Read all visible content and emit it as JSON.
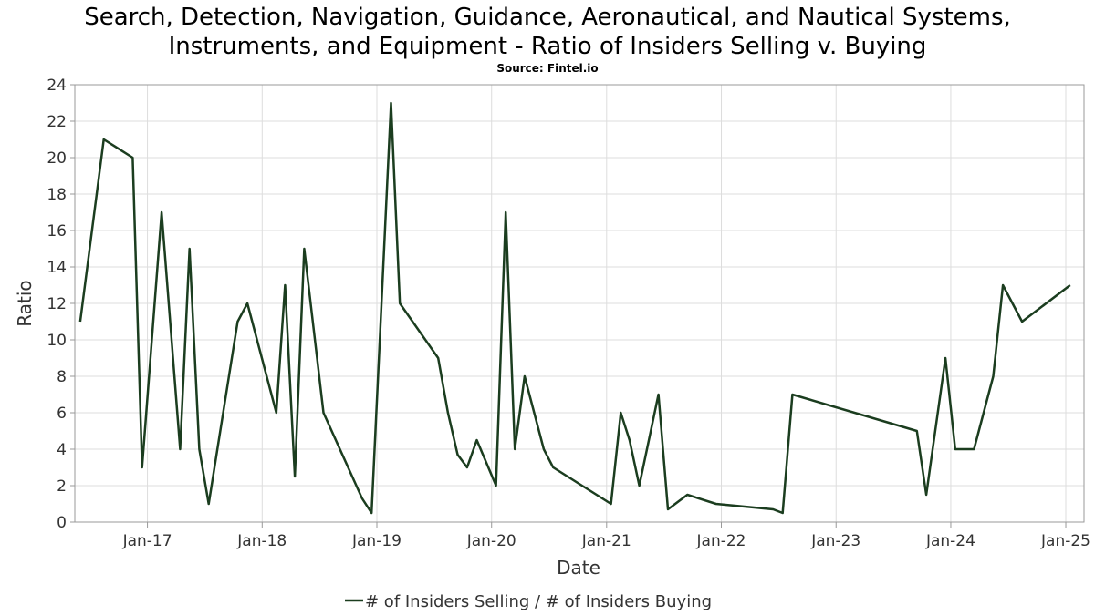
{
  "chart_data": {
    "type": "line",
    "title_line1": "Search, Detection, Navigation, Guidance, Aeronautical, and Nautical Systems,",
    "title_line2": "Instruments, and Equipment - Ratio of Insiders Selling v. Buying",
    "subtitle": "Source: Fintel.io",
    "xlabel": "Date",
    "ylabel": "Ratio",
    "ylim": [
      0,
      24
    ],
    "yticks": [
      0,
      2,
      4,
      6,
      8,
      10,
      12,
      14,
      16,
      18,
      20,
      22,
      24
    ],
    "xlim": [
      "2016-05-15",
      "2025-02-28"
    ],
    "xticks": [
      {
        "date": "2017-01-01",
        "label": "Jan-17"
      },
      {
        "date": "2018-01-01",
        "label": "Jan-18"
      },
      {
        "date": "2019-01-01",
        "label": "Jan-19"
      },
      {
        "date": "2020-01-01",
        "label": "Jan-20"
      },
      {
        "date": "2021-01-01",
        "label": "Jan-21"
      },
      {
        "date": "2022-01-01",
        "label": "Jan-22"
      },
      {
        "date": "2023-01-01",
        "label": "Jan-23"
      },
      {
        "date": "2024-01-01",
        "label": "Jan-24"
      },
      {
        "date": "2025-01-01",
        "label": "Jan-25"
      }
    ],
    "grid": true,
    "legend_position": "bottom",
    "series_color": "#1b3d1f",
    "series": [
      {
        "name": "# of Insiders Selling / # of Insiders Buying",
        "points": [
          {
            "x": "2016-06-01",
            "y": 11
          },
          {
            "x": "2016-08-15",
            "y": 21
          },
          {
            "x": "2016-11-15",
            "y": 20
          },
          {
            "x": "2016-12-15",
            "y": 3
          },
          {
            "x": "2017-02-15",
            "y": 17
          },
          {
            "x": "2017-04-15",
            "y": 4
          },
          {
            "x": "2017-05-15",
            "y": 15
          },
          {
            "x": "2017-06-15",
            "y": 4
          },
          {
            "x": "2017-07-15",
            "y": 1
          },
          {
            "x": "2017-10-15",
            "y": 11
          },
          {
            "x": "2017-11-15",
            "y": 12
          },
          {
            "x": "2018-02-15",
            "y": 6
          },
          {
            "x": "2018-03-15",
            "y": 13
          },
          {
            "x": "2018-04-15",
            "y": 2.5
          },
          {
            "x": "2018-05-15",
            "y": 15
          },
          {
            "x": "2018-07-15",
            "y": 6
          },
          {
            "x": "2018-11-15",
            "y": 1.3
          },
          {
            "x": "2018-12-15",
            "y": 0.5
          },
          {
            "x": "2019-02-15",
            "y": 23
          },
          {
            "x": "2019-03-15",
            "y": 12
          },
          {
            "x": "2019-07-15",
            "y": 9
          },
          {
            "x": "2019-08-15",
            "y": 6
          },
          {
            "x": "2019-09-15",
            "y": 3.7
          },
          {
            "x": "2019-10-15",
            "y": 3
          },
          {
            "x": "2019-11-15",
            "y": 4.5
          },
          {
            "x": "2020-01-15",
            "y": 2
          },
          {
            "x": "2020-02-15",
            "y": 17
          },
          {
            "x": "2020-03-15",
            "y": 4
          },
          {
            "x": "2020-04-15",
            "y": 8
          },
          {
            "x": "2020-06-15",
            "y": 4
          },
          {
            "x": "2020-07-15",
            "y": 3
          },
          {
            "x": "2021-01-15",
            "y": 1
          },
          {
            "x": "2021-02-15",
            "y": 6
          },
          {
            "x": "2021-03-15",
            "y": 4.5
          },
          {
            "x": "2021-04-15",
            "y": 2
          },
          {
            "x": "2021-06-15",
            "y": 7
          },
          {
            "x": "2021-07-15",
            "y": 0.7
          },
          {
            "x": "2021-09-15",
            "y": 1.5
          },
          {
            "x": "2021-12-15",
            "y": 1
          },
          {
            "x": "2022-06-15",
            "y": 0.7
          },
          {
            "x": "2022-07-15",
            "y": 0.5
          },
          {
            "x": "2022-08-15",
            "y": 7
          },
          {
            "x": "2023-09-15",
            "y": 5
          },
          {
            "x": "2023-10-15",
            "y": 1.5
          },
          {
            "x": "2023-12-15",
            "y": 9
          },
          {
            "x": "2024-01-15",
            "y": 4
          },
          {
            "x": "2024-03-15",
            "y": 4
          },
          {
            "x": "2024-05-15",
            "y": 8
          },
          {
            "x": "2024-06-15",
            "y": 13
          },
          {
            "x": "2024-08-15",
            "y": 11
          },
          {
            "x": "2025-01-15",
            "y": 13
          }
        ]
      }
    ]
  }
}
